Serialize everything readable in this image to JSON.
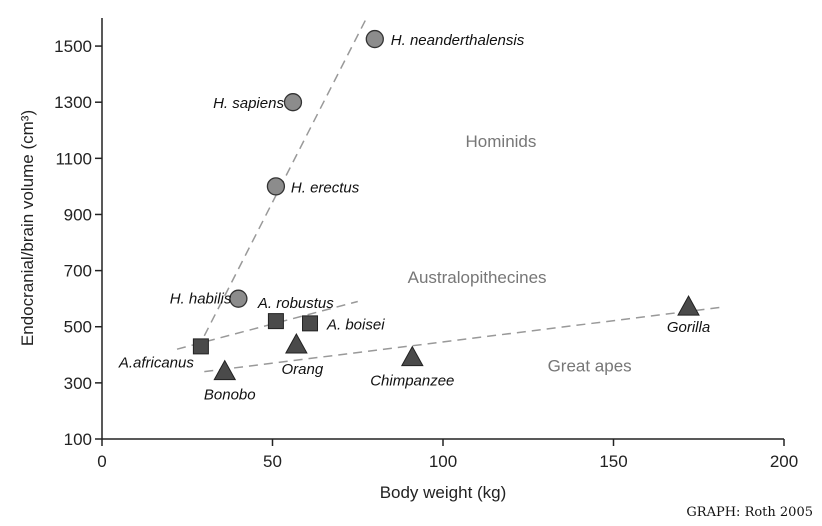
{
  "chart_data": {
    "type": "scatter",
    "xlabel": "Body weight (kg)",
    "ylabel": "Endocranial/brain volume (cm³)",
    "xlim": [
      0,
      200
    ],
    "ylim": [
      100,
      1600
    ],
    "xticks": [
      0,
      50,
      100,
      150,
      200
    ],
    "yticks": [
      100,
      300,
      500,
      700,
      900,
      1100,
      1300,
      1500
    ],
    "grid": false,
    "series": [
      {
        "group": "hominids",
        "marker": "circle",
        "points": [
          {
            "label": "H. neanderthalensis",
            "x": 80,
            "y": 1525
          },
          {
            "label": "H. sapiens",
            "x": 56,
            "y": 1300
          },
          {
            "label": "H. erectus",
            "x": 51,
            "y": 1000
          },
          {
            "label": "H. habilis",
            "x": 40,
            "y": 600
          }
        ]
      },
      {
        "group": "australopithecines",
        "marker": "square",
        "points": [
          {
            "label": "A. robustus",
            "x": 51,
            "y": 520
          },
          {
            "label": "A. boisei",
            "x": 61,
            "y": 512
          },
          {
            "label": "A.africanus",
            "x": 29,
            "y": 430
          }
        ]
      },
      {
        "group": "great-apes",
        "marker": "triangle",
        "points": [
          {
            "label": "Gorilla",
            "x": 172,
            "y": 570
          },
          {
            "label": "Orang",
            "x": 57,
            "y": 435
          },
          {
            "label": "Chimpanzee",
            "x": 91,
            "y": 390
          },
          {
            "label": "Bonobo",
            "x": 36,
            "y": 340
          }
        ]
      }
    ],
    "trend_lines": [
      {
        "name": "hominids",
        "x": [
          28,
          78
        ],
        "y": [
          420,
          1610
        ]
      },
      {
        "name": "australopithecines",
        "x": [
          22,
          75
        ],
        "y": [
          420,
          590
        ]
      },
      {
        "name": "great-apes",
        "x": [
          30,
          182
        ],
        "y": [
          340,
          570
        ]
      }
    ],
    "annotations": [
      {
        "text": "Hominids",
        "x": 117,
        "y": 1140
      },
      {
        "text": "Australopithecines",
        "x": 110,
        "y": 655
      },
      {
        "text": "Great apes",
        "x": 143,
        "y": 340
      }
    ],
    "colors": {
      "marker_fill_circle": "#8c8c8c",
      "marker_fill_other": "#4a4a4a",
      "trend_line": "#999999",
      "axis": "#222222"
    }
  },
  "credit": "GRAPH: Roth 2005"
}
